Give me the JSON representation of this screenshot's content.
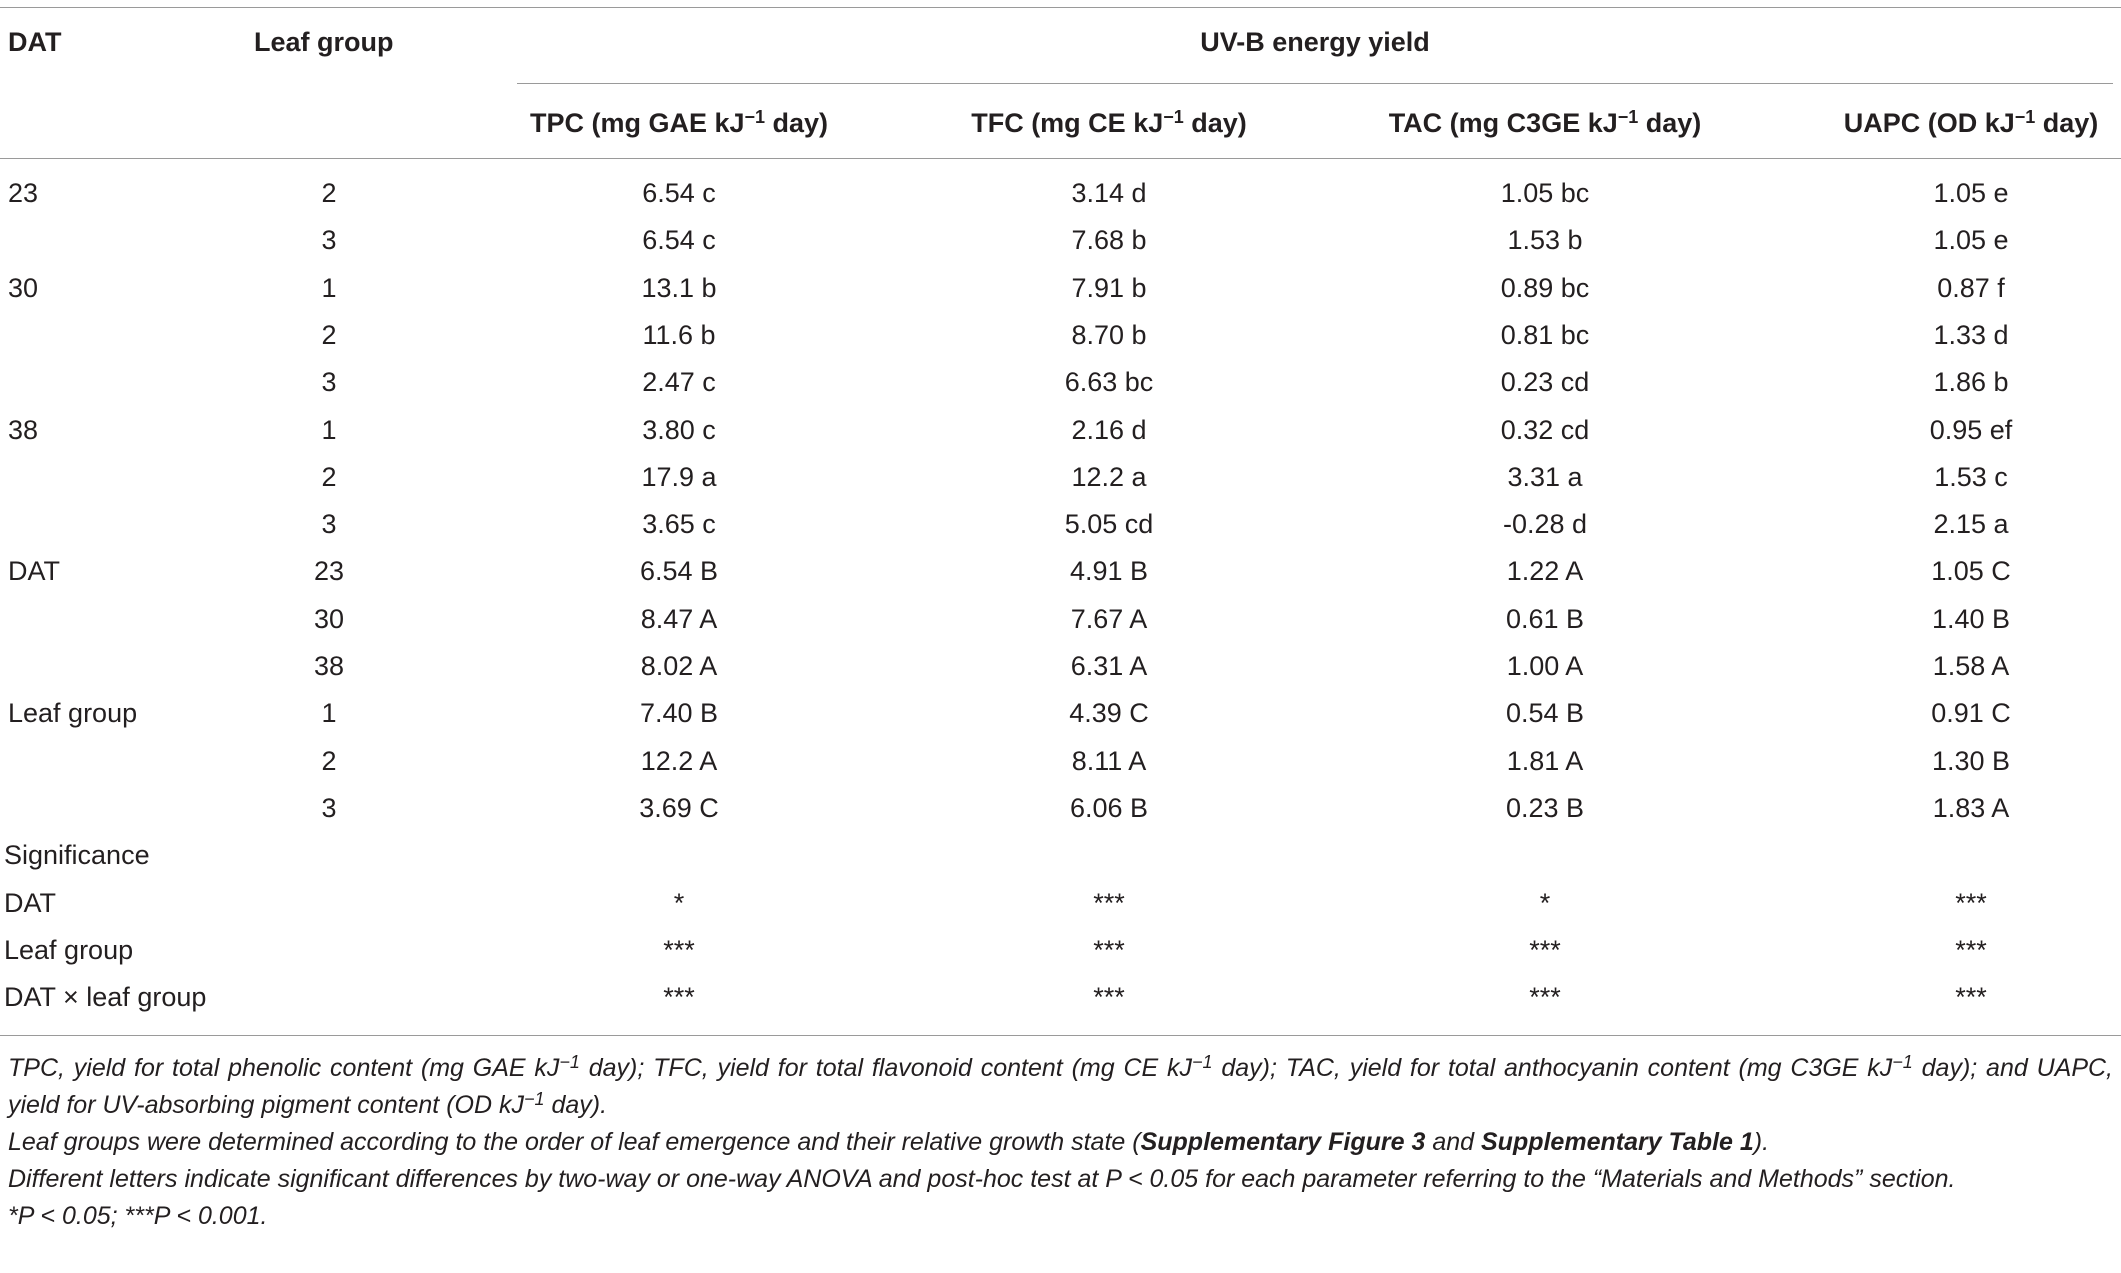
{
  "header": {
    "col0": "DAT",
    "col1": "Leaf group",
    "group": "UV-B energy yield",
    "columns": [
      [
        "TPC (mg GAE kJ",
        "−1",
        " day)"
      ],
      [
        "TFC (mg CE kJ",
        "−1",
        " day)"
      ],
      [
        "TAC (mg C3GE kJ",
        "−1",
        " day)"
      ],
      [
        "UAPC (OD kJ",
        "−1",
        " day)"
      ]
    ]
  },
  "rows": [
    [
      "23",
      "2",
      "6.54 c",
      "3.14 d",
      "1.05 bc",
      "1.05 e"
    ],
    [
      null,
      "3",
      "6.54 c",
      "7.68 b",
      "1.53 b",
      "1.05 e"
    ],
    [
      "30",
      "1",
      "13.1 b",
      "7.91 b",
      "0.89 bc",
      "0.87 f"
    ],
    [
      null,
      "2",
      "11.6 b",
      "8.70 b",
      "0.81 bc",
      "1.33 d"
    ],
    [
      null,
      "3",
      "2.47 c",
      "6.63 bc",
      "0.23 cd",
      "1.86 b"
    ],
    [
      "38",
      "1",
      "3.80 c",
      "2.16 d",
      "0.32 cd",
      "0.95 ef"
    ],
    [
      null,
      "2",
      "17.9 a",
      "12.2 a",
      "3.31 a",
      "1.53 c"
    ],
    [
      null,
      "3",
      "3.65 c",
      "5.05 cd",
      "-0.28 d",
      "2.15 a"
    ],
    [
      "DAT",
      "23",
      "6.54 B",
      "4.91 B",
      "1.22 A",
      "1.05 C"
    ],
    [
      null,
      "30",
      "8.47 A",
      "7.67 A",
      "0.61 B",
      "1.40 B"
    ],
    [
      null,
      "38",
      "8.02 A",
      "6.31 A",
      "1.00 A",
      "1.58 A"
    ],
    [
      "Leaf group",
      "1",
      "7.40 B",
      "4.39 C",
      "0.54 B",
      "0.91 C"
    ],
    [
      null,
      "2",
      "12.2 A",
      "8.11 A",
      "1.81 A",
      "1.30 B"
    ],
    [
      null,
      "3",
      "3.69 C",
      "6.06 B",
      "0.23 B",
      "1.83 A"
    ],
    [
      "Significance",
      null,
      null,
      null,
      null,
      null
    ],
    [
      "DAT",
      null,
      "*",
      "***",
      "*",
      "***"
    ],
    [
      "Leaf group",
      null,
      "***",
      "***",
      "***",
      "***"
    ],
    [
      "DAT × leaf group",
      null,
      "***",
      "***",
      "***",
      "***"
    ]
  ],
  "notes": [
    [
      "TPC, yield for total phenolic content (mg GAE kJ",
      "−1",
      " day); TFC, yield for total flavonoid content (mg CE kJ",
      "−1",
      " day); TAC, yield for total anthocyanin content (mg C3GE kJ",
      "−1",
      " day); and UAPC, yield for UV-absorbing pigment content (OD kJ",
      "−1",
      " day)."
    ],
    [
      "Leaf groups were determined according to the order of leaf emergence and their relative growth state (",
      "Supplementary Figure 3",
      " and ",
      "Supplementary Table 1",
      ")."
    ],
    [
      "Different letters indicate significant differences by two-way or one-way ANOVA and post-hoc test at P < 0.05 for each parameter referring to the “Materials and Methods” section."
    ],
    [
      "*P < 0.05; ***P < 0.001."
    ]
  ]
}
